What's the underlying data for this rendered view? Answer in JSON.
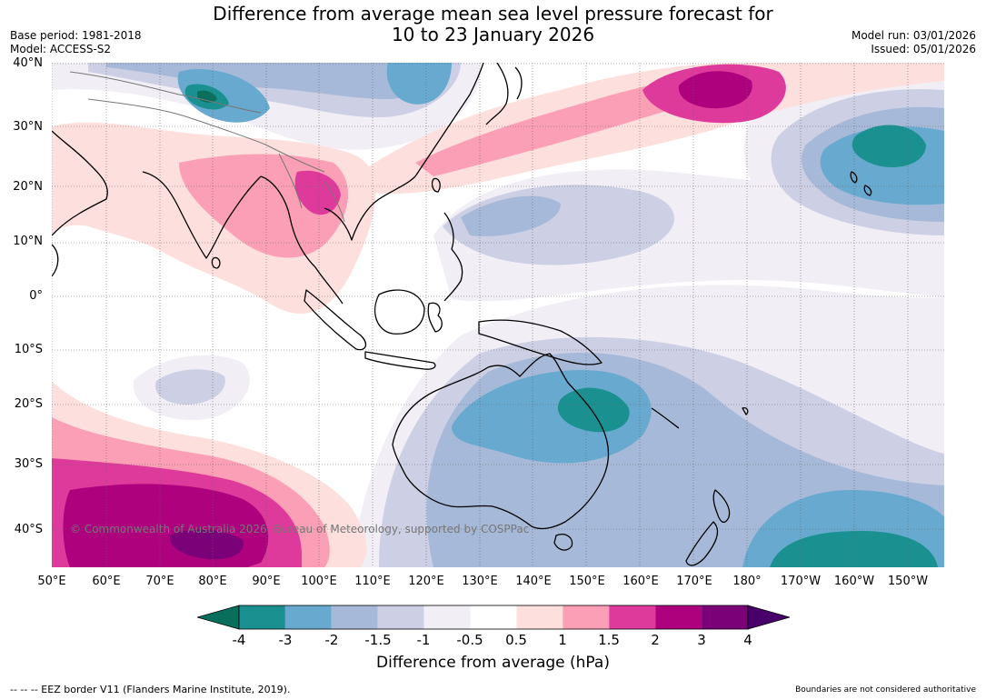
{
  "title": {
    "line1": "Difference from average mean sea level pressure forecast for",
    "line2": "10 to 23 January 2026"
  },
  "meta": {
    "base_period": "Base period: 1981-2018",
    "model": "Model: ACCESS-S2",
    "model_run": "Model run: 03/01/2026",
    "issued": "Issued: 05/01/2026"
  },
  "map": {
    "latitude_labels": [
      "40°N",
      "30°N",
      "20°N",
      "10°N",
      "0°",
      "10°S",
      "20°S",
      "30°S",
      "40°S"
    ],
    "longitude_labels": [
      "50°E",
      "60°E",
      "70°E",
      "80°E",
      "90°E",
      "100°E",
      "110°E",
      "120°E",
      "130°E",
      "140°E",
      "150°E",
      "160°E",
      "170°E",
      "180°",
      "170°W",
      "160°W",
      "150°W"
    ],
    "copyright": "© Commonwealth of Australia 2026, Bureau of Meteorology, supported by COSPPac"
  },
  "colorbar": {
    "label": "Difference from average (hPa)",
    "ticks": [
      "-4",
      "-3",
      "-2",
      "-1.5",
      "-1",
      "-0.5",
      "0.5",
      "1",
      "1.5",
      "2",
      "3",
      "4"
    ],
    "colors": [
      "#1a9190",
      "#67a9cf",
      "#a7b9d8",
      "#cdcfe4",
      "#f1eef6",
      "#ffffff",
      "#fde0dd",
      "#fa9fb5",
      "#de3a9b",
      "#ae017e",
      "#7a0177"
    ],
    "under_color": "#0a6e5c",
    "over_color": "#49006a"
  },
  "footer": {
    "eez": "--  --  -- EEZ border V11 (Flanders Marine Institute, 2019).",
    "boundaries": "Boundaries are not considered authoritative"
  }
}
